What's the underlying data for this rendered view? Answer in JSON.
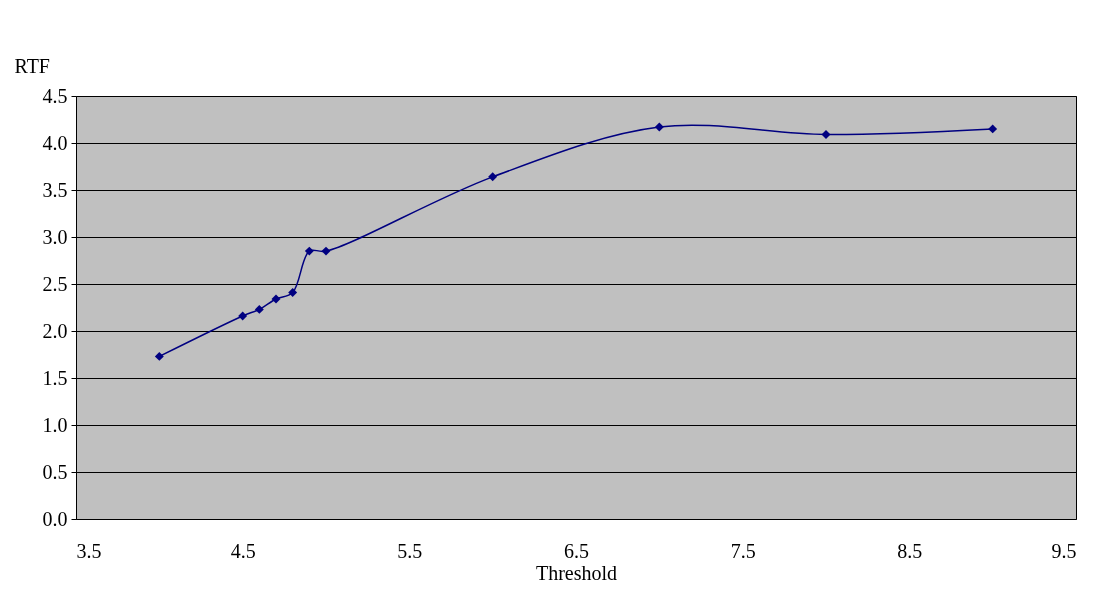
{
  "chart_data": {
    "type": "line",
    "xlabel": "Threshold",
    "ylabel": "RTF",
    "x": [
      4.0,
      4.5,
      4.6,
      4.7,
      4.8,
      4.9,
      5.0,
      6.0,
      7.0,
      8.0,
      9.0
    ],
    "series": [
      {
        "color": "#000080",
        "values": [
          1.73,
          2.16,
          2.23,
          2.34,
          2.41,
          2.85,
          2.85,
          3.64,
          4.17,
          4.09,
          4.15
        ]
      }
    ],
    "xlim": [
      3.5,
      9.5
    ],
    "xticks": [
      3.5,
      4.5,
      5.5,
      6.5,
      7.5,
      8.5,
      9.5
    ],
    "ylim": [
      0,
      4.5
    ],
    "yticks": [
      {
        "value": 0,
        "label": "0.0"
      },
      0.5,
      {
        "value": 1,
        "label": "1.0"
      },
      1.5,
      {
        "value": 2,
        "label": "2.0"
      },
      2.5,
      {
        "value": 3,
        "label": "3.0"
      },
      3.5,
      {
        "value": 4,
        "label": "4.0"
      },
      4.5
    ],
    "grid": "y",
    "marker": "diamond",
    "line_style": "solid"
  }
}
